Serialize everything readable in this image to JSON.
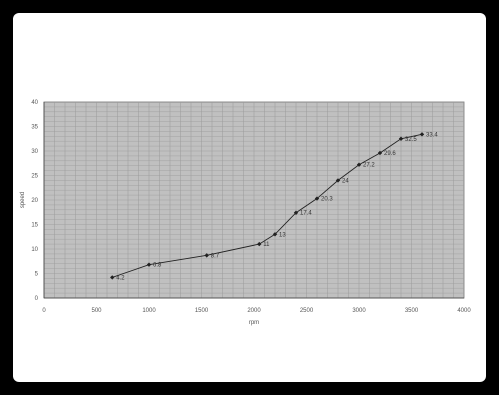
{
  "chart_data": {
    "type": "line",
    "title": "",
    "xlabel": "rpm",
    "ylabel": "speed",
    "xlim": [
      0,
      4000
    ],
    "ylim": [
      0,
      40
    ],
    "xticks": [
      0,
      500,
      1000,
      1500,
      2000,
      2500,
      3000,
      3500,
      4000
    ],
    "yticks": [
      0,
      5,
      10,
      15,
      20,
      25,
      30,
      35,
      40
    ],
    "grid": true,
    "series": [
      {
        "points": [
          {
            "x": 650,
            "y": 4.2,
            "label": "4.2"
          },
          {
            "x": 1000,
            "y": 6.8,
            "label": "6.8"
          },
          {
            "x": 1550,
            "y": 8.7,
            "label": "8.7"
          },
          {
            "x": 2050,
            "y": 11,
            "label": "11"
          },
          {
            "x": 2200,
            "y": 13,
            "label": "13"
          },
          {
            "x": 2400,
            "y": 17.4,
            "label": "17.4"
          },
          {
            "x": 2600,
            "y": 20.3,
            "label": "20.3"
          },
          {
            "x": 2800,
            "y": 24,
            "label": "24"
          },
          {
            "x": 3000,
            "y": 27.2,
            "label": "27.2"
          },
          {
            "x": 3200,
            "y": 29.6,
            "label": "29.6"
          },
          {
            "x": 3400,
            "y": 32.5,
            "label": "32.5"
          },
          {
            "x": 3600,
            "y": 33.4,
            "label": "33.4"
          }
        ]
      }
    ]
  },
  "colors": {
    "plot_background": "#c0c0c0",
    "grid": "#9a9a9a",
    "line": "#222222",
    "frame_background": "#ffffff",
    "page_background": "#000000"
  }
}
